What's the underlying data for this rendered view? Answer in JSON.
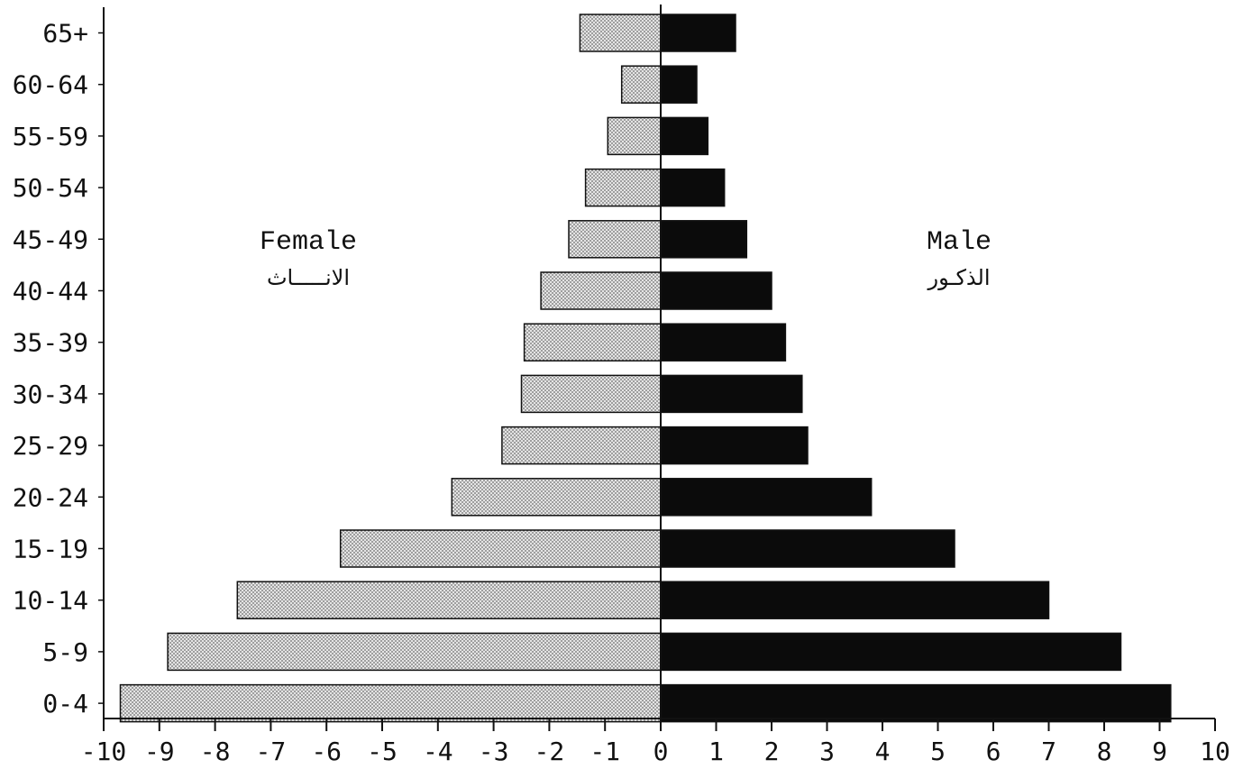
{
  "chart_data": {
    "type": "bar",
    "orientation": "horizontal",
    "title": "",
    "xlabel": "",
    "ylabel": "",
    "xlim": [
      -10,
      10
    ],
    "x_ticks": [
      -10,
      -9,
      -8,
      -7,
      -6,
      -5,
      -4,
      -3,
      -2,
      -1,
      0,
      1,
      2,
      3,
      4,
      5,
      6,
      7,
      8,
      9,
      10
    ],
    "x_tick_labels": [
      "-10",
      "-9",
      "-8",
      "-7",
      "-6",
      "-5",
      "-4",
      "-3",
      "-2",
      "-1",
      "0",
      "1",
      "2",
      "3",
      "4",
      "5",
      "6",
      "7",
      "8",
      "9",
      "10"
    ],
    "categories": [
      "65+",
      "60-64",
      "55-59",
      "50-54",
      "45-49",
      "40-44",
      "35-39",
      "30-34",
      "25-29",
      "20-24",
      "15-19",
      "10-14",
      "5-9",
      "0-4"
    ],
    "grid": false,
    "series": [
      {
        "name": "Female",
        "name_ar": "الانـــــاث",
        "values": [
          -1.45,
          -0.7,
          -0.95,
          -1.35,
          -1.65,
          -2.15,
          -2.45,
          -2.5,
          -2.85,
          -3.75,
          -5.75,
          -7.6,
          -8.85,
          -9.7
        ],
        "color": "#c9c9c9",
        "pattern": "dotted"
      },
      {
        "name": "Male",
        "name_ar": "الذكـور",
        "values": [
          1.35,
          0.65,
          0.85,
          1.15,
          1.55,
          2.0,
          2.25,
          2.55,
          2.65,
          3.8,
          5.3,
          7.0,
          8.3,
          9.2
        ],
        "color": "#0b0b0b",
        "pattern": "solid"
      }
    ]
  }
}
